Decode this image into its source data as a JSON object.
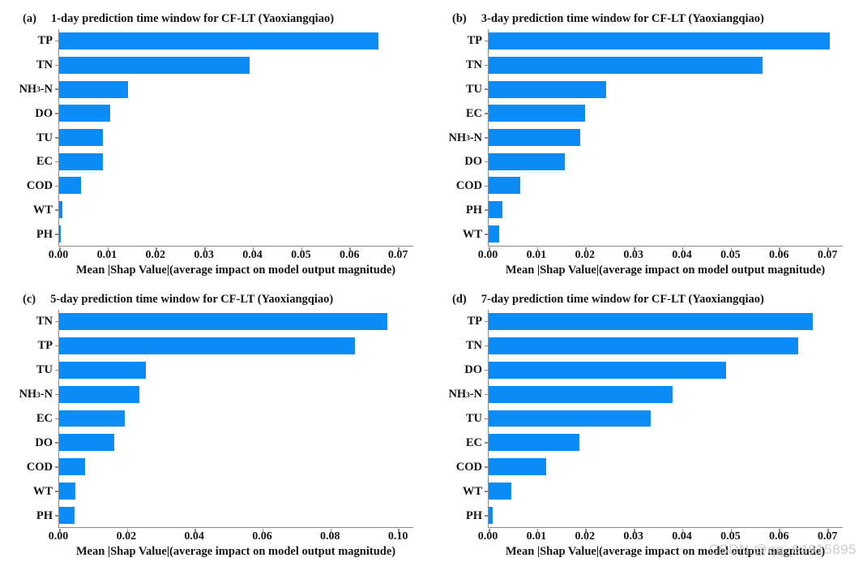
{
  "figure": {
    "background": "#ffffff",
    "bar_color": "#0a8cf8",
    "axis_color": "#8a8a8a",
    "text_color": "#151515",
    "axis_extension_factor": 1.045
  },
  "watermark": {
    "text": "CSDN @qq_64915895"
  },
  "chart_data": [
    {
      "type": "bar",
      "orientation": "horizontal",
      "panel_label": "(a)",
      "title": "1-day prediction time window for CF-LT (Yaoxiangqiao)",
      "categories": [
        "TP",
        "TN",
        "NH3-N",
        "DO",
        "TU",
        "EC",
        "COD",
        "WT",
        "PH"
      ],
      "values": [
        0.066,
        0.0394,
        0.0142,
        0.0106,
        0.0091,
        0.009,
        0.0046,
        0.0006,
        0.0004
      ],
      "xlabel": "Mean |Shap Value|(average impact on model output magnitude)",
      "xlim": [
        0,
        0.07
      ],
      "xticks": [
        "0.00",
        "0.01",
        "0.02",
        "0.03",
        "0.04",
        "0.05",
        "0.06",
        "0.07"
      ],
      "grid": false,
      "legend": false
    },
    {
      "type": "bar",
      "orientation": "horizontal",
      "panel_label": "(b)",
      "title": "3-day prediction time window for CF-LT (Yaoxiangqiao)",
      "categories": [
        "TP",
        "TN",
        "TU",
        "EC",
        "NH3-N",
        "DO",
        "COD",
        "PH",
        "WT"
      ],
      "values": [
        0.0705,
        0.0566,
        0.0243,
        0.0199,
        0.0189,
        0.0158,
        0.0066,
        0.0029,
        0.0022
      ],
      "xlabel": "Mean |Shap Value|(average impact on model output magnitude)",
      "xlim": [
        0,
        0.07
      ],
      "xticks": [
        "0.00",
        "0.01",
        "0.02",
        "0.03",
        "0.04",
        "0.05",
        "0.06",
        "0.07"
      ],
      "grid": false,
      "legend": false
    },
    {
      "type": "bar",
      "orientation": "horizontal",
      "panel_label": "(c)",
      "title": "5-day prediction time window for CF-LT (Yaoxiangqiao)",
      "categories": [
        "TN",
        "TP",
        "TU",
        "NH3-N",
        "EC",
        "DO",
        "COD",
        "WT",
        "PH"
      ],
      "values": [
        0.0968,
        0.0872,
        0.0255,
        0.0237,
        0.0194,
        0.0163,
        0.0076,
        0.0049,
        0.0045
      ],
      "xlabel": "Mean |Shap Value|(average impact on model output magnitude)",
      "xlim": [
        0,
        0.1
      ],
      "xticks": [
        "0.00",
        "0.02",
        "0.04",
        "0.06",
        "0.08",
        "0.10"
      ],
      "grid": false,
      "legend": false
    },
    {
      "type": "bar",
      "orientation": "horizontal",
      "panel_label": "(d)",
      "title": "7-day prediction time window for CF-LT (Yaoxiangqiao)",
      "categories": [
        "TP",
        "TN",
        "DO",
        "NH3-N",
        "TU",
        "EC",
        "COD",
        "WT",
        "PH"
      ],
      "values": [
        0.067,
        0.064,
        0.049,
        0.038,
        0.0334,
        0.0187,
        0.0119,
        0.0047,
        0.0009
      ],
      "xlabel": "Mean |Shap Value|(average impact on model output magnitude)",
      "xlim": [
        0,
        0.07
      ],
      "xticks": [
        "0.00",
        "0.01",
        "0.02",
        "0.03",
        "0.04",
        "0.05",
        "0.06",
        "0.07"
      ],
      "grid": false,
      "legend": false
    }
  ]
}
